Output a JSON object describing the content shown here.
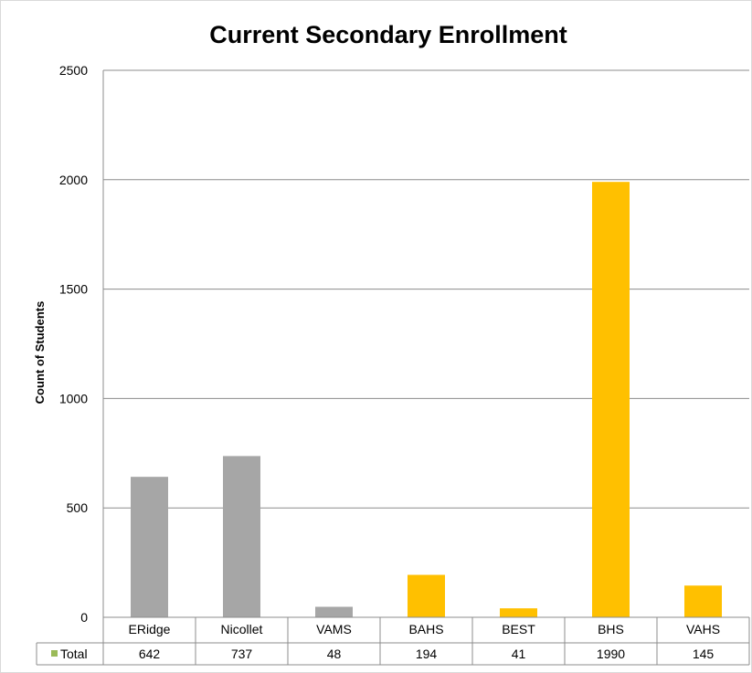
{
  "chart_data": {
    "type": "bar",
    "title": "Current Secondary Enrollment",
    "xlabel": "",
    "ylabel": "Count of Students",
    "ylim": [
      0,
      2500
    ],
    "yticks": [
      0,
      500,
      1000,
      1500,
      2000,
      2500
    ],
    "grid": true,
    "categories": [
      "ERidge",
      "Nicollet",
      "VAMS",
      "BAHS",
      "BEST",
      "BHS",
      "VAHS"
    ],
    "bar_colors": [
      "#a6a6a6",
      "#a6a6a6",
      "#a6a6a6",
      "#ffc000",
      "#ffc000",
      "#ffc000",
      "#ffc000"
    ],
    "series": [
      {
        "name": "Total",
        "legend_color": "#9bbb59",
        "values": [
          642,
          737,
          48,
          194,
          41,
          1990,
          145
        ]
      }
    ],
    "data_table": true
  }
}
